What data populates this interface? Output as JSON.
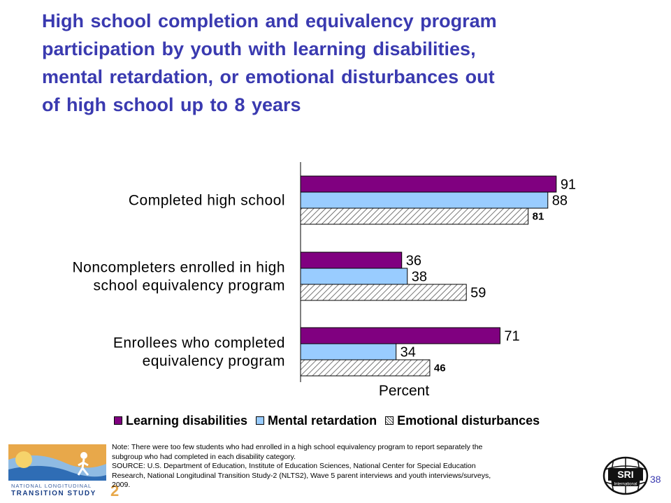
{
  "title_lines": [
    "High school completion and equivalency program",
    "participation by youth with learning disabilities,",
    "mental retardation, or emotional disturbances out",
    "of high school up to 8 years"
  ],
  "chart_data": {
    "type": "bar",
    "orientation": "horizontal",
    "categories": [
      [
        "Completed high school"
      ],
      [
        "Noncompleters enrolled in high",
        "school equivalency program"
      ],
      [
        "Enrollees who completed",
        "equivalency program"
      ]
    ],
    "series": [
      {
        "name": "Learning disabilities",
        "values": [
          91,
          36,
          71
        ],
        "color": "#800080"
      },
      {
        "name": "Mental retardation",
        "values": [
          88,
          38,
          34
        ],
        "color": "#99ccff"
      },
      {
        "name": "Emotional disturbances",
        "values": [
          81,
          59,
          46
        ],
        "color": "hatched"
      }
    ],
    "xlabel": "Percent",
    "xlim": [
      0,
      100
    ],
    "grid": false,
    "legend_position": "bottom"
  },
  "legend": [
    {
      "label": "Learning disabilities"
    },
    {
      "label": "Mental retardation"
    },
    {
      "label": "Emotional disturbances"
    }
  ],
  "note_lines": [
    "Note: There  were too few students who had enrolled in a high school equivalency program to report separately the",
    "subgroup who had completed in each disability category.",
    "SOURCE: U.S. Department of Education, Institute of Education Sciences, National Center for Special Education",
    "Research, National Longitudinal Transition Study-2 (NLTS2), Wave 5 parent interviews and youth interviews/surveys,",
    "2009."
  ],
  "logo_left": {
    "line1": "NATIONAL LONGITUDINAL",
    "line2": "TRANSITION STUDY",
    "number": "2"
  },
  "logo_right": {
    "text": "SRI",
    "subtext": "International"
  },
  "page_number": "38"
}
